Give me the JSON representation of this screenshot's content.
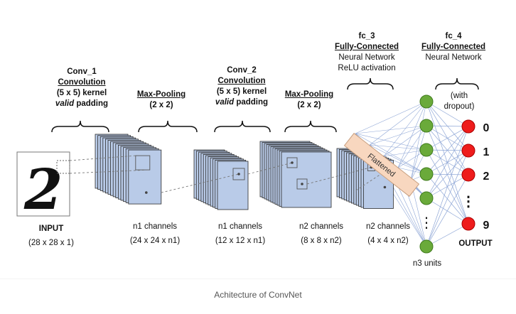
{
  "labels": {
    "conv1": {
      "name": "Conv_1",
      "type": "Convolution",
      "kernel": "(5 x 5) kernel",
      "padding_word": "valid",
      "padding_rest": " padding"
    },
    "pool1": {
      "name": "Max-Pooling",
      "size": "(2 x 2)"
    },
    "conv2": {
      "name": "Conv_2",
      "type": "Convolution",
      "kernel": "(5 x 5) kernel",
      "padding_word": "valid",
      "padding_rest": " padding"
    },
    "pool2": {
      "name": "Max-Pooling",
      "size": "(2 x 2)"
    },
    "fc3": {
      "name": "fc_3",
      "type": "Fully-Connected",
      "line1": "Neural Network",
      "line2": "ReLU activation"
    },
    "fc4": {
      "name": "fc_4",
      "type": "Fully-Connected",
      "line1": "Neural Network"
    },
    "dropout": {
      "line1": "(with",
      "line2": "dropout)"
    },
    "input": {
      "title": "INPUT",
      "dims": "(28 x 28 x 1)"
    },
    "layer1": {
      "title": "n1 channels",
      "dims": "(24 x 24 x n1)"
    },
    "layer2": {
      "title": "n1 channels",
      "dims": "(12 x 12 x n1)"
    },
    "layer3": {
      "title": "n2 channels",
      "dims": "(8 x 8 x n2)"
    },
    "layer4": {
      "title": "n2 channels",
      "dims": "(4 x 4 x n2)"
    },
    "flattened": "Flattened",
    "hidden_units": "n3 units",
    "output_title": "OUTPUT",
    "output_labels": [
      "0",
      "1",
      "2",
      "⋮",
      "9"
    ],
    "hidden_ellipsis": "⋮",
    "input_digit": "2"
  },
  "caption": "Achitecture of ConvNet",
  "colors": {
    "feature_map": "#b9cbe8",
    "feature_map_stroke": "#2b2b2b",
    "flatten_fill": "#f8d7bf",
    "flatten_stroke": "#c9a080",
    "hidden_node": "#6aaa3a",
    "output_node": "#ee1c1c",
    "connection": "#8ea6d6"
  }
}
